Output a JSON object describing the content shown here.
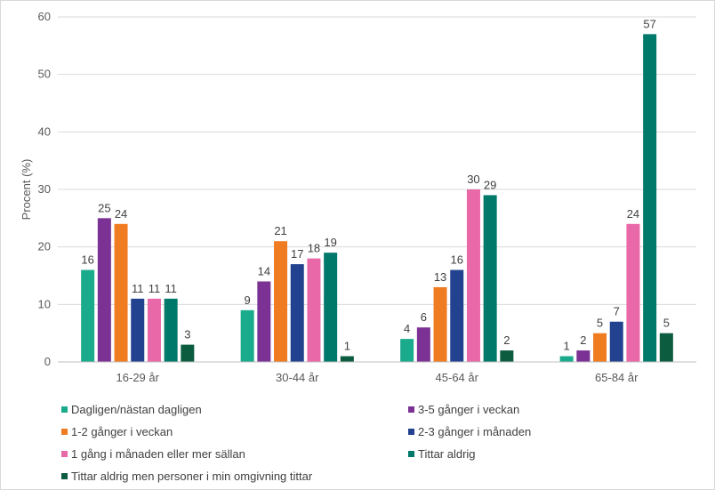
{
  "chart_data": {
    "type": "bar",
    "categories": [
      "16-29 år",
      "30-44 år",
      "45-64 år",
      "65-84 år"
    ],
    "ylabel": "Procent (%)",
    "ylim": [
      0,
      60
    ],
    "yticks": [
      0,
      10,
      20,
      30,
      40,
      50,
      60
    ],
    "grid": true,
    "legend_position": "bottom",
    "series": [
      {
        "name": "Dagligen/nästan dagligen",
        "color": "#1aaa8c",
        "values": [
          16,
          9,
          4,
          1
        ]
      },
      {
        "name": "3-5 gånger i veckan",
        "color": "#7b3294",
        "values": [
          25,
          14,
          6,
          2
        ]
      },
      {
        "name": "1-2 gånger i veckan",
        "color": "#f07c22",
        "values": [
          24,
          21,
          13,
          5
        ]
      },
      {
        "name": "2-3 gånger i månaden",
        "color": "#22428f",
        "values": [
          11,
          17,
          16,
          7
        ]
      },
      {
        "name": "1 gång i månaden eller mer sällan",
        "color": "#e868a8",
        "values": [
          11,
          18,
          30,
          24
        ]
      },
      {
        "name": "Tittar aldrig",
        "color": "#00786a",
        "values": [
          11,
          19,
          29,
          57
        ]
      },
      {
        "name": "Tittar aldrig men personer i min omgivning tittar",
        "color": "#0c5c40",
        "values": [
          3,
          1,
          2,
          5
        ]
      }
    ]
  }
}
